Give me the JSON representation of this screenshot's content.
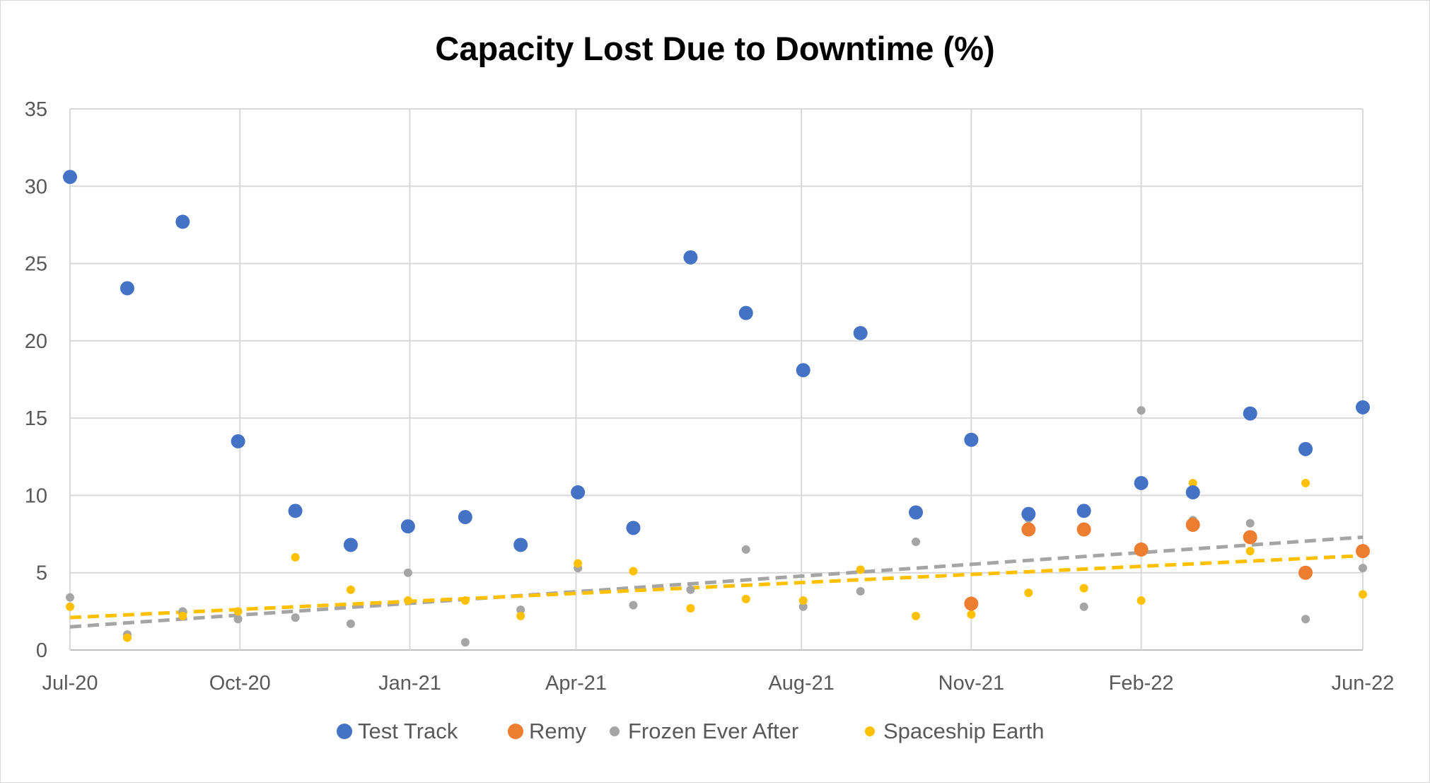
{
  "chart_data": {
    "type": "scatter",
    "title": "Capacity Lost Due to Downtime (%)",
    "xlabel": "",
    "ylabel": "",
    "ylim": [
      0,
      35
    ],
    "yticks": [
      "0",
      "5",
      "10",
      "15",
      "20",
      "25",
      "30",
      "35"
    ],
    "xlim": [
      "2020-07-01",
      "2022-06-01"
    ],
    "xticks": [
      {
        "label": "Jul-20",
        "date": "2020-07-01"
      },
      {
        "label": "Oct-20",
        "date": "2020-10-01"
      },
      {
        "label": "Jan-21",
        "date": "2021-01-01"
      },
      {
        "label": "Apr-21",
        "date": "2021-04-01"
      },
      {
        "label": "Aug-21",
        "date": "2021-08-01"
      },
      {
        "label": "Nov-21",
        "date": "2021-11-01"
      },
      {
        "label": "Feb-22",
        "date": "2022-02-01"
      },
      {
        "label": "Jun-22",
        "date": "2022-06-01"
      }
    ],
    "grid": true,
    "legend_position": "bottom",
    "series": [
      {
        "name": "Test Track",
        "color": "#4472C4",
        "marker": "large",
        "points": [
          {
            "x": "2020-07-01",
            "y": 30.6
          },
          {
            "x": "2020-08-01",
            "y": 23.4
          },
          {
            "x": "2020-08-31",
            "y": 27.7
          },
          {
            "x": "2020-09-30",
            "y": 13.5
          },
          {
            "x": "2020-10-31",
            "y": 9.0
          },
          {
            "x": "2020-11-30",
            "y": 6.8
          },
          {
            "x": "2020-12-31",
            "y": 8.0
          },
          {
            "x": "2021-01-31",
            "y": 8.6
          },
          {
            "x": "2021-03-02",
            "y": 6.8
          },
          {
            "x": "2021-04-02",
            "y": 10.2
          },
          {
            "x": "2021-05-02",
            "y": 7.9
          },
          {
            "x": "2021-06-02",
            "y": 25.4
          },
          {
            "x": "2021-07-02",
            "y": 21.8
          },
          {
            "x": "2021-08-02",
            "y": 18.1
          },
          {
            "x": "2021-09-02",
            "y": 20.5
          },
          {
            "x": "2021-10-02",
            "y": 8.9
          },
          {
            "x": "2021-11-01",
            "y": 13.6
          },
          {
            "x": "2021-12-02",
            "y": 8.8
          },
          {
            "x": "2022-01-01",
            "y": 9.0
          },
          {
            "x": "2022-02-01",
            "y": 10.8
          },
          {
            "x": "2022-03-01",
            "y": 10.2
          },
          {
            "x": "2022-04-01",
            "y": 15.3
          },
          {
            "x": "2022-05-01",
            "y": 13.0
          },
          {
            "x": "2022-06-01",
            "y": 15.7
          }
        ]
      },
      {
        "name": "Remy",
        "color": "#ED7D31",
        "marker": "large",
        "points": [
          {
            "x": "2021-11-01",
            "y": 3.0
          },
          {
            "x": "2021-12-02",
            "y": 7.8
          },
          {
            "x": "2022-01-01",
            "y": 7.8
          },
          {
            "x": "2022-02-01",
            "y": 6.5
          },
          {
            "x": "2022-03-01",
            "y": 8.1
          },
          {
            "x": "2022-04-01",
            "y": 7.3
          },
          {
            "x": "2022-05-01",
            "y": 5.0
          },
          {
            "x": "2022-06-01",
            "y": 6.4
          }
        ]
      },
      {
        "name": "Frozen Ever After",
        "color": "#A5A5A5",
        "marker": "small",
        "trendline": {
          "from": 1.5,
          "to": 7.3
        },
        "points": [
          {
            "x": "2020-07-01",
            "y": 3.4
          },
          {
            "x": "2020-08-01",
            "y": 1.0
          },
          {
            "x": "2020-08-31",
            "y": 2.5
          },
          {
            "x": "2020-09-30",
            "y": 2.0
          },
          {
            "x": "2020-10-31",
            "y": 2.1
          },
          {
            "x": "2020-11-30",
            "y": 1.7
          },
          {
            "x": "2020-12-31",
            "y": 5.0
          },
          {
            "x": "2021-01-31",
            "y": 0.5
          },
          {
            "x": "2021-03-02",
            "y": 2.6
          },
          {
            "x": "2021-04-02",
            "y": 5.3
          },
          {
            "x": "2021-05-02",
            "y": 2.9
          },
          {
            "x": "2021-06-02",
            "y": 3.9
          },
          {
            "x": "2021-07-02",
            "y": 6.5
          },
          {
            "x": "2021-08-02",
            "y": 2.8
          },
          {
            "x": "2021-09-02",
            "y": 3.8
          },
          {
            "x": "2021-10-02",
            "y": 7.0
          },
          {
            "x": "2021-11-01",
            "y": 3.0
          },
          {
            "x": "2021-12-02",
            "y": 8.5
          },
          {
            "x": "2022-01-01",
            "y": 2.8
          },
          {
            "x": "2022-02-01",
            "y": 15.5
          },
          {
            "x": "2022-03-01",
            "y": 8.4
          },
          {
            "x": "2022-04-01",
            "y": 8.2
          },
          {
            "x": "2022-05-01",
            "y": 2.0
          },
          {
            "x": "2022-06-01",
            "y": 5.3
          }
        ]
      },
      {
        "name": "Spaceship Earth",
        "color": "#FFC000",
        "marker": "small",
        "trendline": {
          "from": 2.1,
          "to": 6.1
        },
        "points": [
          {
            "x": "2020-07-01",
            "y": 2.8
          },
          {
            "x": "2020-08-01",
            "y": 0.8
          },
          {
            "x": "2020-08-31",
            "y": 2.2
          },
          {
            "x": "2020-09-30",
            "y": 2.5
          },
          {
            "x": "2020-10-31",
            "y": 6.0
          },
          {
            "x": "2020-11-30",
            "y": 3.9
          },
          {
            "x": "2020-12-31",
            "y": 3.2
          },
          {
            "x": "2021-01-31",
            "y": 3.2
          },
          {
            "x": "2021-03-02",
            "y": 2.2
          },
          {
            "x": "2021-04-02",
            "y": 5.6
          },
          {
            "x": "2021-05-02",
            "y": 5.1
          },
          {
            "x": "2021-06-02",
            "y": 2.7
          },
          {
            "x": "2021-07-02",
            "y": 3.3
          },
          {
            "x": "2021-08-02",
            "y": 3.2
          },
          {
            "x": "2021-09-02",
            "y": 5.2
          },
          {
            "x": "2021-10-02",
            "y": 2.2
          },
          {
            "x": "2021-11-01",
            "y": 2.3
          },
          {
            "x": "2021-12-02",
            "y": 3.7
          },
          {
            "x": "2022-01-01",
            "y": 4.0
          },
          {
            "x": "2022-02-01",
            "y": 3.2
          },
          {
            "x": "2022-03-01",
            "y": 10.8
          },
          {
            "x": "2022-04-01",
            "y": 6.4
          },
          {
            "x": "2022-05-01",
            "y": 10.8
          },
          {
            "x": "2022-06-01",
            "y": 3.6
          }
        ]
      }
    ]
  }
}
